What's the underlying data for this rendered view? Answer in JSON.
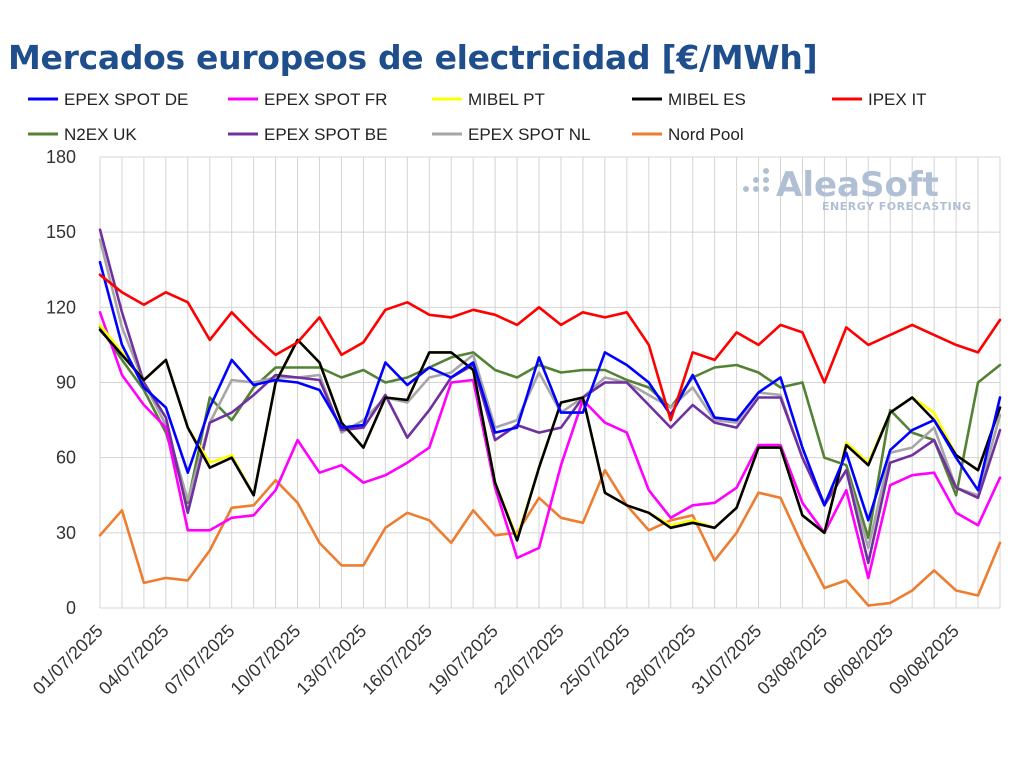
{
  "chart_data": {
    "type": "line",
    "title": "Mercados europeos de electricidad [€/MWh]",
    "xlabel": "",
    "ylabel": "",
    "ylim": [
      0,
      180
    ],
    "yticks": [
      0,
      30,
      60,
      90,
      120,
      150,
      180
    ],
    "grid": true,
    "legend_position": "top",
    "x": [
      "01/07/2025",
      "02/07/2025",
      "03/07/2025",
      "04/07/2025",
      "05/07/2025",
      "06/07/2025",
      "07/07/2025",
      "08/07/2025",
      "09/07/2025",
      "10/07/2025",
      "11/07/2025",
      "12/07/2025",
      "13/07/2025",
      "14/07/2025",
      "15/07/2025",
      "16/07/2025",
      "17/07/2025",
      "18/07/2025",
      "19/07/2025",
      "20/07/2025",
      "21/07/2025",
      "22/07/2025",
      "23/07/2025",
      "24/07/2025",
      "25/07/2025",
      "26/07/2025",
      "27/07/2025",
      "28/07/2025",
      "29/07/2025",
      "30/07/2025",
      "31/07/2025",
      "01/08/2025",
      "02/08/2025",
      "03/08/2025",
      "04/08/2025",
      "05/08/2025",
      "06/08/2025",
      "07/08/2025",
      "08/08/2025",
      "09/08/2025",
      "10/08/2025",
      "11/08/2025"
    ],
    "x_tick_labels": [
      "01/07/2025",
      "04/07/2025",
      "07/07/2025",
      "10/07/2025",
      "13/07/2025",
      "16/07/2025",
      "19/07/2025",
      "22/07/2025",
      "25/07/2025",
      "28/07/2025",
      "31/07/2025",
      "03/08/2025",
      "06/08/2025",
      "09/08/2025"
    ],
    "series": [
      {
        "name": "N2EX UK",
        "color": "#548235",
        "values": [
          112,
          99,
          87,
          70,
          42,
          84,
          75,
          88,
          96,
          96,
          96,
          92,
          95,
          90,
          92,
          96,
          100,
          102,
          95,
          92,
          97,
          94,
          95,
          95,
          91,
          88,
          80,
          92,
          96,
          97,
          94,
          88,
          90,
          60,
          57,
          28,
          79,
          70,
          67,
          45,
          90,
          97
        ]
      },
      {
        "name": "Nord Pool",
        "color": "#ed7d31",
        "values": [
          29,
          39,
          10,
          12,
          11,
          23,
          40,
          41,
          51,
          42,
          26,
          17,
          17,
          32,
          38,
          35,
          26,
          39,
          29,
          30,
          44,
          36,
          34,
          55,
          41,
          31,
          35,
          37,
          19,
          30,
          46,
          44,
          25,
          8,
          11,
          1,
          2,
          7,
          15,
          7,
          5,
          26
        ]
      },
      {
        "name": "EPEX SPOT NL",
        "color": "#a6a6a6",
        "values": [
          147,
          112,
          90,
          73,
          43,
          74,
          91,
          90,
          92,
          92,
          93,
          70,
          75,
          84,
          82,
          92,
          94,
          101,
          72,
          75,
          94,
          78,
          84,
          92,
          90,
          85,
          80,
          88,
          75,
          74,
          86,
          85,
          60,
          42,
          55,
          24,
          62,
          64,
          72,
          48,
          45,
          77
        ]
      },
      {
        "name": "EPEX SPOT BE",
        "color": "#7030a0",
        "values": [
          151,
          118,
          90,
          76,
          38,
          74,
          78,
          85,
          93,
          92,
          91,
          71,
          72,
          85,
          68,
          79,
          92,
          97,
          67,
          73,
          70,
          72,
          84,
          90,
          90,
          81,
          72,
          81,
          74,
          72,
          84,
          84,
          60,
          41,
          55,
          18,
          58,
          61,
          67,
          48,
          44,
          71
        ]
      },
      {
        "name": "EPEX SPOT FR",
        "color": "#ff00ff",
        "values": [
          118,
          93,
          81,
          72,
          31,
          31,
          36,
          37,
          47,
          67,
          54,
          57,
          50,
          53,
          58,
          64,
          90,
          91,
          48,
          20,
          24,
          57,
          83,
          74,
          70,
          47,
          36,
          41,
          42,
          48,
          65,
          65,
          42,
          30,
          47,
          12,
          49,
          53,
          54,
          38,
          33,
          52
        ]
      },
      {
        "name": "MIBEL PT",
        "color": "#ffff00",
        "values": [
          113,
          102,
          91,
          99,
          72,
          58,
          61,
          45,
          90,
          107,
          98,
          74,
          64,
          84,
          83,
          102,
          102,
          95,
          50,
          28,
          56,
          82,
          84,
          46,
          41,
          38,
          33,
          35,
          32,
          40,
          64,
          64,
          37,
          30,
          66,
          58,
          78,
          84,
          78,
          61,
          55,
          80
        ]
      },
      {
        "name": "MIBEL ES",
        "color": "#000000",
        "values": [
          111,
          101,
          91,
          99,
          72,
          56,
          60,
          45,
          90,
          107,
          98,
          74,
          64,
          84,
          83,
          102,
          102,
          95,
          50,
          27,
          56,
          82,
          84,
          46,
          41,
          38,
          32,
          34,
          32,
          40,
          64,
          64,
          37,
          30,
          65,
          57,
          78,
          84,
          75,
          61,
          55,
          80
        ]
      },
      {
        "name": "EPEX SPOT DE",
        "color": "#0000ff",
        "values": [
          138,
          105,
          88,
          80,
          54,
          80,
          99,
          89,
          91,
          90,
          87,
          72,
          73,
          98,
          89,
          96,
          92,
          98,
          70,
          72,
          100,
          78,
          78,
          102,
          97,
          90,
          77,
          93,
          76,
          75,
          86,
          92,
          64,
          41,
          62,
          35,
          63,
          71,
          75,
          60,
          47,
          84
        ]
      },
      {
        "name": "IPEX IT",
        "color": "#ff0000",
        "values": [
          133,
          126,
          121,
          126,
          122,
          107,
          118,
          109,
          101,
          106,
          116,
          101,
          106,
          119,
          122,
          117,
          116,
          119,
          117,
          113,
          120,
          113,
          118,
          116,
          118,
          105,
          75,
          102,
          99,
          110,
          105,
          113,
          110,
          90,
          112,
          105,
          109,
          113,
          109,
          105,
          102,
          115
        ]
      }
    ],
    "legend_order": [
      "EPEX SPOT DE",
      "EPEX SPOT FR",
      "MIBEL PT",
      "MIBEL ES",
      "IPEX IT",
      "N2EX UK",
      "EPEX SPOT BE",
      "EPEX SPOT NL",
      "Nord Pool"
    ],
    "watermark": {
      "brand": "AleaSoft",
      "tagline": "ENERGY FORECASTING"
    }
  }
}
